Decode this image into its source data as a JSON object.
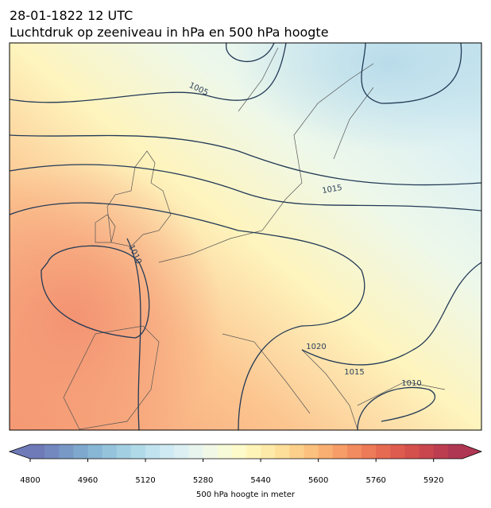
{
  "header": {
    "date": "28-01-1822 12 UTC",
    "title": "Luchtdruk op zeeniveau in hPa en 500 hPa hoogte"
  },
  "map": {
    "contour_labels": [
      "1005",
      "1015",
      "1010",
      "1020",
      "1015",
      "1010"
    ]
  },
  "colorbar": {
    "label": "500 hPa hoogte in meter",
    "lim": [
      4800,
      6000
    ],
    "ticks": [
      4800,
      4960,
      5120,
      5280,
      5440,
      5600,
      5760,
      5920
    ],
    "colors": [
      "#6f7ab8",
      "#7388bf",
      "#7898c6",
      "#7ea8cd",
      "#88b6d5",
      "#95c3dc",
      "#a3cfe3",
      "#b1dae9",
      "#c0e3ef",
      "#cfeaf2",
      "#dcf0f3",
      "#e8f5ef",
      "#f1f8e6",
      "#f8fbd8",
      "#fdfbc9",
      "#fef4b8",
      "#feeaa8",
      "#fddf99",
      "#fcd08b",
      "#fbc07e",
      "#f9af72",
      "#f69d68",
      "#f28b5f",
      "#ed7a58",
      "#e66a52",
      "#de5c4f",
      "#d4504d",
      "#c9464e",
      "#bd3d50",
      "#b03753"
    ]
  }
}
